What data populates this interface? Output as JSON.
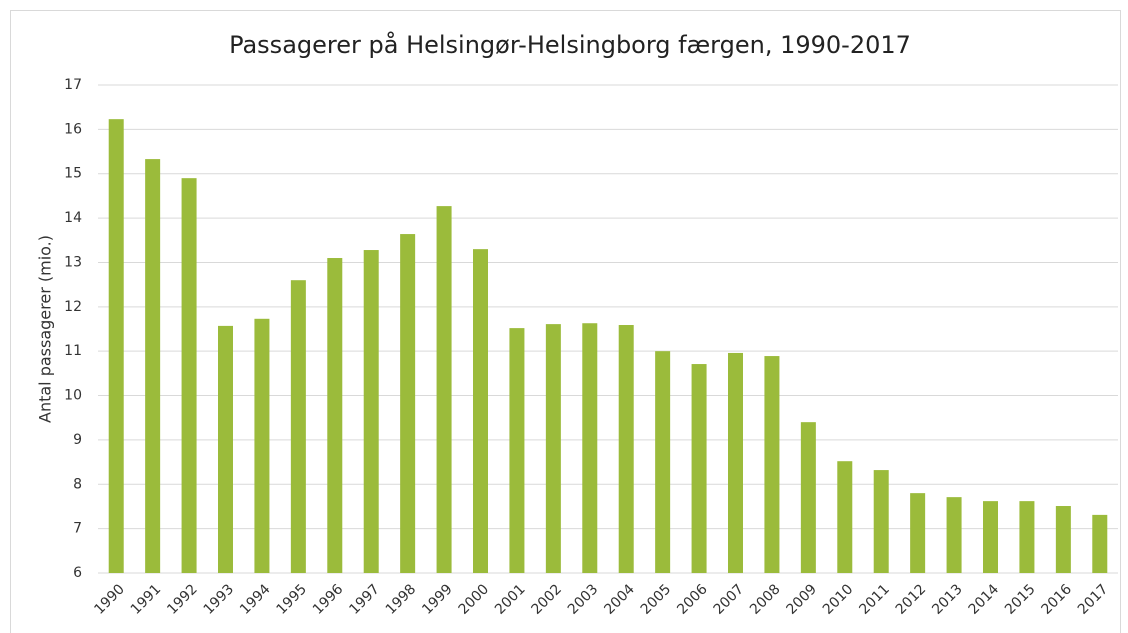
{
  "chart_data": {
    "type": "bar",
    "title": "Passagerer på Helsingør-Helsingborg færgen, 1990-2017",
    "y_label": "Antal passagerer (mio.)",
    "categories": [
      "1990",
      "1991",
      "1992",
      "1993",
      "1994",
      "1995",
      "1996",
      "1997",
      "1998",
      "1999",
      "2000",
      "2001",
      "2002",
      "2003",
      "2004",
      "2005",
      "2006",
      "2007",
      "2008",
      "2009",
      "2010",
      "2011",
      "2012",
      "2013",
      "2014",
      "2015",
      "2016",
      "2017"
    ],
    "values": [
      16.23,
      15.33,
      14.9,
      11.57,
      11.73,
      12.6,
      13.1,
      13.28,
      13.64,
      14.27,
      13.3,
      11.52,
      11.61,
      11.63,
      11.59,
      11.0,
      10.71,
      10.96,
      10.89,
      9.4,
      8.52,
      8.32,
      7.8,
      7.71,
      7.62,
      7.62,
      7.51,
      7.31
    ],
    "color": "#9bbb3b",
    "ylim": [
      6,
      17
    ],
    "yticks": [
      6,
      7,
      8,
      9,
      10,
      11,
      12,
      13,
      14,
      15,
      16,
      17
    ],
    "grid": true
  }
}
